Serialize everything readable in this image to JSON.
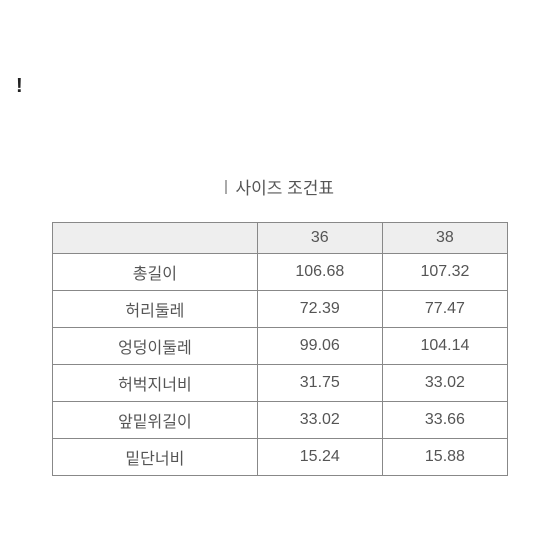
{
  "fragment": "!",
  "title": "사이즈 조건표",
  "table": {
    "headers": [
      "",
      "36",
      "38"
    ],
    "rows": [
      {
        "label": "총길이",
        "v1": "106.68",
        "v2": "107.32"
      },
      {
        "label": "허리둘레",
        "v1": "72.39",
        "v2": "77.47"
      },
      {
        "label": "엉덩이둘레",
        "v1": "99.06",
        "v2": "104.14"
      },
      {
        "label": "허벅지너비",
        "v1": "31.75",
        "v2": "33.02"
      },
      {
        "label": "앞밑위길이",
        "v1": "33.02",
        "v2": "33.66"
      },
      {
        "label": "밑단너비",
        "v1": "15.24",
        "v2": "15.88"
      }
    ],
    "col_widths": [
      "45%",
      "27.5%",
      "27.5%"
    ],
    "border_color": "#888888",
    "header_bg": "#eeeeee",
    "text_color": "#555555",
    "fontsize": 16
  },
  "background_color": "#ffffff"
}
